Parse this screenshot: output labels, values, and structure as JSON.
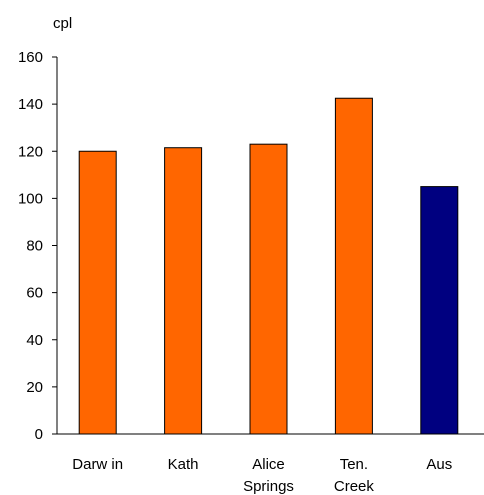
{
  "chart_data": {
    "type": "bar",
    "categories": [
      [
        "Darw in"
      ],
      [
        "Kath"
      ],
      [
        "Alice",
        "Springs"
      ],
      [
        "Ten.",
        "Creek"
      ],
      [
        "Aus"
      ]
    ],
    "values": [
      120,
      121.5,
      123,
      142.5,
      105
    ],
    "colors": [
      "#FF6600",
      "#FF6600",
      "#FF6600",
      "#FF6600",
      "#000080"
    ],
    "title": "",
    "xlabel": "",
    "ylabel": "cpl",
    "ylim": [
      0,
      160
    ],
    "yticks": [
      0,
      20,
      40,
      60,
      80,
      100,
      120,
      140,
      160
    ],
    "grid": false
  }
}
